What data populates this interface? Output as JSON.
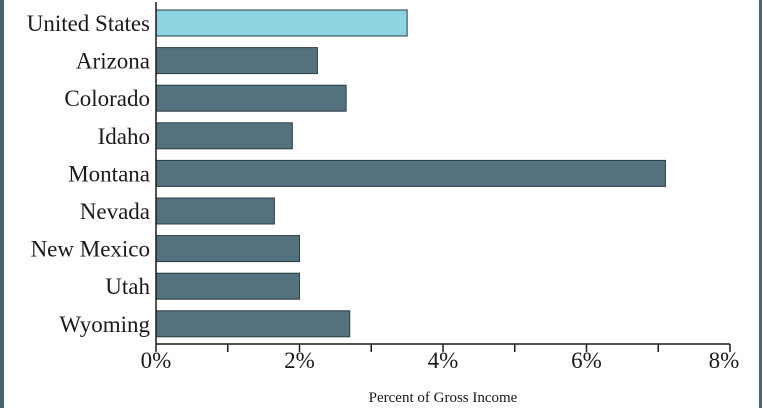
{
  "chart_data": {
    "type": "bar",
    "orientation": "horizontal",
    "categories": [
      "United States",
      "Arizona",
      "Colorado",
      "Idaho",
      "Montana",
      "Nevada",
      "New Mexico",
      "Utah",
      "Wyoming"
    ],
    "values": [
      3.5,
      2.25,
      2.65,
      1.9,
      7.1,
      1.65,
      2.0,
      2.0,
      2.7
    ],
    "highlight_index": 0,
    "xlabel": "Percent of Gross Income",
    "xlim": [
      0,
      8
    ],
    "xticks": [
      0,
      2,
      4,
      6,
      8
    ],
    "xtick_labels": [
      "0%",
      "2%",
      "4%",
      "6%",
      "8%"
    ],
    "colors": {
      "highlight": "#8dd3e2",
      "bar": "#54717e",
      "border": "#2b3c44"
    }
  }
}
